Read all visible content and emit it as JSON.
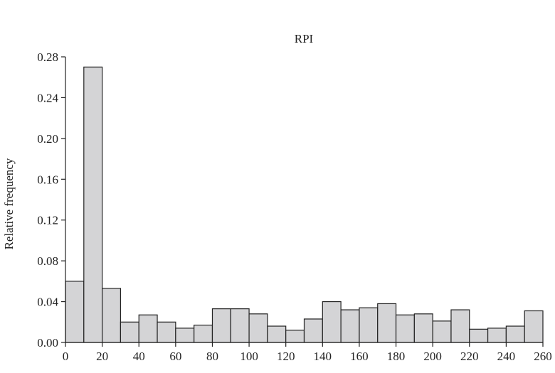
{
  "chart_data": {
    "type": "bar",
    "title": "RPI",
    "xlabel": "",
    "ylabel": "Relative frequency",
    "bin_width": 10,
    "xlim": [
      0,
      260
    ],
    "ylim": [
      0,
      0.28
    ],
    "x_ticks": [
      "0",
      "20",
      "40",
      "60",
      "80",
      "100",
      "120",
      "140",
      "160",
      "180",
      "200",
      "220",
      "240",
      "260"
    ],
    "y_ticks": [
      "0.00",
      "0.04",
      "0.08",
      "0.12",
      "0.16",
      "0.20",
      "0.24",
      "0.28"
    ],
    "bins": [
      0,
      10,
      20,
      30,
      40,
      50,
      60,
      70,
      80,
      90,
      100,
      110,
      120,
      130,
      140,
      150,
      160,
      170,
      180,
      190,
      200,
      210,
      220,
      230,
      240,
      250
    ],
    "values": [
      0.06,
      0.27,
      0.053,
      0.02,
      0.027,
      0.02,
      0.014,
      0.017,
      0.033,
      0.033,
      0.028,
      0.016,
      0.012,
      0.023,
      0.04,
      0.032,
      0.034,
      0.038,
      0.027,
      0.028,
      0.021,
      0.032,
      0.013,
      0.014,
      0.016,
      0.031
    ],
    "grid": false,
    "bar_color": "#d4d4d6",
    "edge_color": "#222222"
  }
}
